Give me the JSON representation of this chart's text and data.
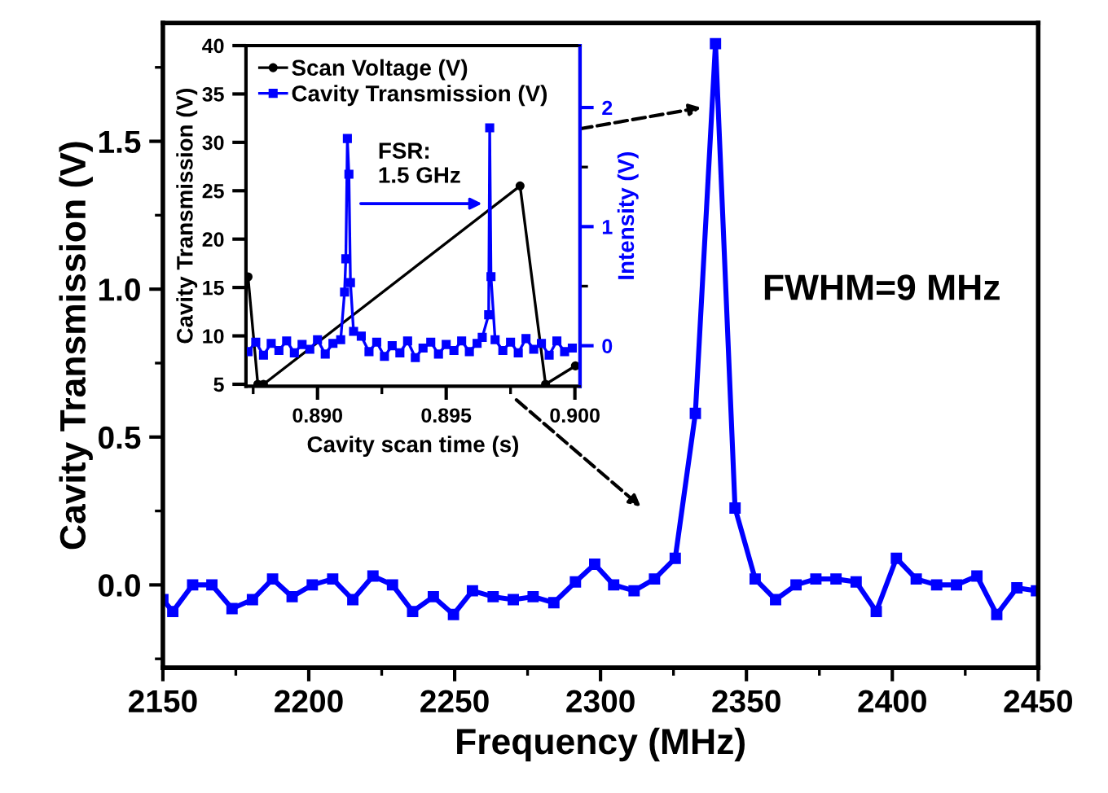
{
  "chart_data": [
    {
      "type": "line",
      "xlabel": "Frequency (MHz)",
      "ylabel": "Cavity Transmission (V)",
      "annotations": [
        "FWHM=9 MHz"
      ],
      "xlim": [
        2150,
        2450
      ],
      "ylim": [
        -0.28,
        1.9
      ],
      "xticks": [
        2150,
        {
          "value": 2175,
          "label": null
        },
        2200,
        {
          "value": 2225,
          "label": null
        },
        2250,
        {
          "value": 2275,
          "label": null
        },
        2300,
        {
          "value": 2325,
          "label": null
        },
        2350,
        {
          "value": 2375,
          "label": null
        },
        2400,
        {
          "value": 2425,
          "label": null
        },
        2450
      ],
      "yticks": [
        {
          "value": -0.25,
          "label": null
        },
        {
          "value": 0,
          "label": "0.0"
        },
        {
          "value": 0.25,
          "label": null
        },
        0.5,
        {
          "value": 0.75,
          "label": null
        },
        {
          "value": 1,
          "label": "1.0"
        },
        {
          "value": 1.25,
          "label": null
        },
        1.5,
        {
          "value": 1.75,
          "label": null
        }
      ],
      "grid": false,
      "marker": "square",
      "line_style": "solid",
      "series": [
        {
          "color": "#0000ff",
          "x": [
            2150,
            2153.4,
            2160.2,
            2166.8,
            2173.7,
            2180.7,
            2187.6,
            2194.3,
            2201.2,
            2208.2,
            2215.1,
            2222,
            2228.7,
            2235.6,
            2242.7,
            2249.6,
            2256.1,
            2263.2,
            2270.1,
            2276.9,
            2284,
            2291.4,
            2298,
            2304.5,
            2311.5,
            2318.5,
            2325.6,
            2332.5,
            2339.4,
            2346.1,
            2353,
            2360,
            2367,
            2373.8,
            2380.7,
            2387.6,
            2394.5,
            2401.4,
            2408.2,
            2415.2,
            2422,
            2429,
            2435.8,
            2442.7,
            2449.4
          ],
          "values": [
            -0.05,
            -0.09,
            0.0,
            0.0,
            -0.08,
            -0.05,
            0.02,
            -0.04,
            0.0,
            0.02,
            -0.05,
            0.03,
            0.0,
            -0.09,
            -0.04,
            -0.1,
            -0.02,
            -0.04,
            -0.05,
            -0.04,
            -0.06,
            0.01,
            0.07,
            0.0,
            -0.02,
            0.02,
            0.09,
            0.58,
            1.83,
            0.26,
            0.02,
            -0.05,
            0.0,
            0.02,
            0.02,
            0.01,
            -0.09,
            0.09,
            0.02,
            0.0,
            0.0,
            0.03,
            -0.1,
            -0.01,
            -0.02
          ]
        }
      ]
    },
    {
      "type": "line",
      "xlabel": "Cavity scan time (s)",
      "ylabel": "Cavity Transmission (V)",
      "y2label": "Intensity (V)",
      "annotations": [
        "FSR:\n1.5 GHz"
      ],
      "xlim": [
        0.88722,
        0.9002
      ],
      "ylim": [
        4.8,
        40
      ],
      "y2lim": [
        -0.34,
        2.52
      ],
      "xticks": [
        {
          "value": 0.8875,
          "label": null
        },
        {
          "value": 0.89,
          "label": "0.890"
        },
        {
          "value": 0.8925,
          "label": null
        },
        0.895,
        {
          "value": 0.8975,
          "label": null
        },
        {
          "value": 0.9,
          "label": "0.900"
        }
      ],
      "yticks": [
        5,
        10,
        15,
        20,
        25,
        30,
        35,
        40
      ],
      "y2ticks": [
        0,
        {
          "value": 0.5,
          "label": null
        },
        1,
        {
          "value": 1.5,
          "label": null
        },
        2
      ],
      "legend": "top left",
      "grid": false,
      "line_style": "solid",
      "series": [
        {
          "name": "Scan Voltage (V)",
          "color": "#000000",
          "marker": "circle",
          "x": [
            0.8873,
            0.88768,
            0.8879,
            0.89787,
            0.89886,
            0.90002
          ],
          "values": [
            16.1,
            5.0,
            5.0,
            25.5,
            5.0,
            6.9
          ]
        },
        {
          "name": "Cavity Transmission (V)",
          "color": "#0000ff",
          "marker": "square",
          "axis": "y2",
          "x": [
            0.8873,
            0.8876,
            0.8879,
            0.8882,
            0.8885,
            0.8888,
            0.8891,
            0.8894,
            0.8897,
            0.89,
            0.8903,
            0.8906,
            0.8909,
            0.89105,
            0.8911,
            0.89116,
            0.89122,
            0.89128,
            0.8914,
            0.8917,
            0.892,
            0.8923,
            0.8926,
            0.8929,
            0.8932,
            0.8935,
            0.8938,
            0.8941,
            0.8944,
            0.8947,
            0.895,
            0.8953,
            0.8956,
            0.8959,
            0.8962,
            0.8964,
            0.89665,
            0.89669,
            0.89674,
            0.8969,
            0.8972,
            0.8975,
            0.8978,
            0.8981,
            0.8984,
            0.8987,
            0.899,
            0.8993,
            0.8996,
            0.8999
          ],
          "values": [
            -0.05,
            0.03,
            -0.08,
            0.02,
            -0.04,
            0.04,
            -0.06,
            0.01,
            -0.03,
            0.05,
            -0.07,
            0.02,
            0.05,
            0.45,
            0.73,
            1.74,
            1.44,
            0.53,
            0.12,
            0.08,
            -0.05,
            0.03,
            -0.09,
            0.0,
            -0.06,
            0.04,
            -0.1,
            -0.02,
            0.03,
            -0.07,
            0.01,
            -0.04,
            0.04,
            -0.05,
            0.02,
            0.07,
            0.26,
            1.83,
            0.58,
            0.05,
            -0.04,
            0.03,
            -0.06,
            0.06,
            -0.03,
            0.02,
            -0.08,
            0.04,
            -0.05,
            -0.02
          ]
        }
      ]
    }
  ]
}
